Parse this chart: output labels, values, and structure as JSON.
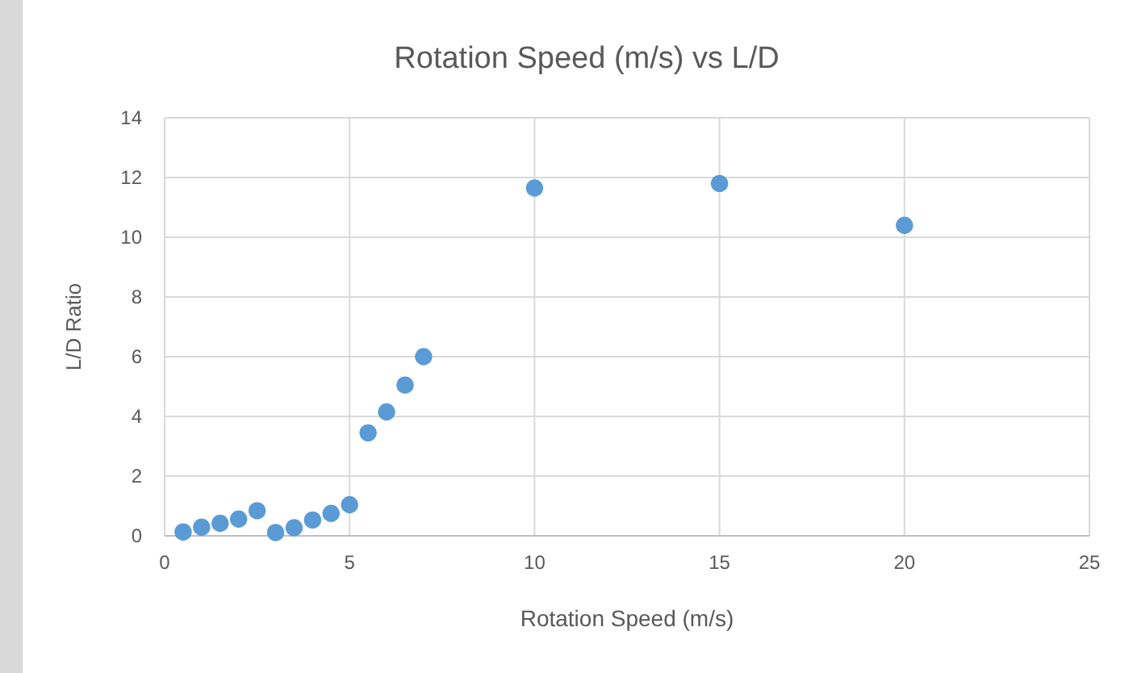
{
  "chart_data": {
    "type": "scatter",
    "title": "Rotation Speed (m/s) vs L/D",
    "xlabel": "Rotation Speed (m/s)",
    "ylabel": "L/D Ratio",
    "x": [
      0.5,
      1,
      1.5,
      2,
      2.5,
      3,
      3.5,
      4,
      4.5,
      5,
      5.5,
      6,
      6.5,
      7,
      10,
      15,
      20
    ],
    "series": [
      {
        "color": "#5b9bd5",
        "values": [
          0.13,
          0.29,
          0.42,
          0.56,
          0.84,
          0.11,
          0.27,
          0.53,
          0.75,
          1.04,
          3.45,
          4.15,
          5.05,
          6.0,
          11.65,
          11.8,
          10.4
        ]
      }
    ],
    "xlim": [
      0,
      25
    ],
    "xticks": [
      0,
      5,
      10,
      15,
      20,
      25
    ],
    "ylim": [
      0,
      14
    ],
    "yticks": [
      0,
      2,
      4,
      6,
      8,
      10,
      12,
      14
    ],
    "grid": true,
    "marker": "circle"
  }
}
